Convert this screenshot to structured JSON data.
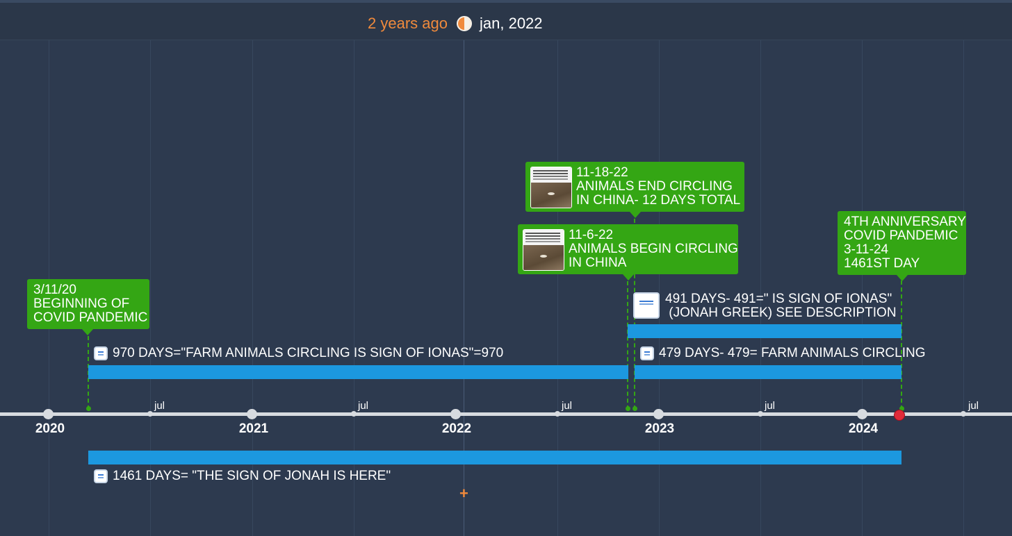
{
  "header": {
    "relative_time": "2 years ago",
    "current_date": "jan, 2022",
    "accent_color": "#f08a3c"
  },
  "axis": {
    "years": [
      "2020",
      "2021",
      "2022",
      "2023",
      "2024"
    ],
    "half_year_label": "jul",
    "halves": [
      "jul",
      "jul",
      "jul",
      "jul",
      "jul"
    ]
  },
  "events": [
    {
      "lines": [
        "3/11/20",
        "BEGINNING OF",
        "COVID PANDEMIC"
      ],
      "has_thumbnail": false
    },
    {
      "lines": [
        "11-18-22",
        "ANIMALS END CIRCLING",
        "IN CHINA- 12 DAYS TOTAL"
      ],
      "has_thumbnail": true
    },
    {
      "lines": [
        "11-6-22",
        "ANIMALS BEGIN CIRCLING",
        "IN CHINA"
      ],
      "has_thumbnail": true
    },
    {
      "lines": [
        "4TH ANNIVERSARY",
        "COVID PANDEMIC",
        "3-11-24",
        "1461ST DAY"
      ],
      "has_thumbnail": false
    }
  ],
  "spans": [
    {
      "label": "970 DAYS=\"FARM ANIMALS CIRCLING IS SIGN OF IONAS\"=970"
    },
    {
      "label_line1": "491 DAYS- 491=\" IS SIGN OF IONAS\"",
      "label_line2": " (JONAH GREEK) SEE DESCRIPTION"
    },
    {
      "label": "479 DAYS- 479= FARM ANIMALS CIRCLING"
    },
    {
      "label": "1461 DAYS= \"THE SIGN OF JONAH IS HERE\""
    }
  ],
  "colors": {
    "background": "#2d3a4f",
    "event_green": "#34a614",
    "span_blue": "#1c98df",
    "now_marker": "#e02b3a"
  }
}
